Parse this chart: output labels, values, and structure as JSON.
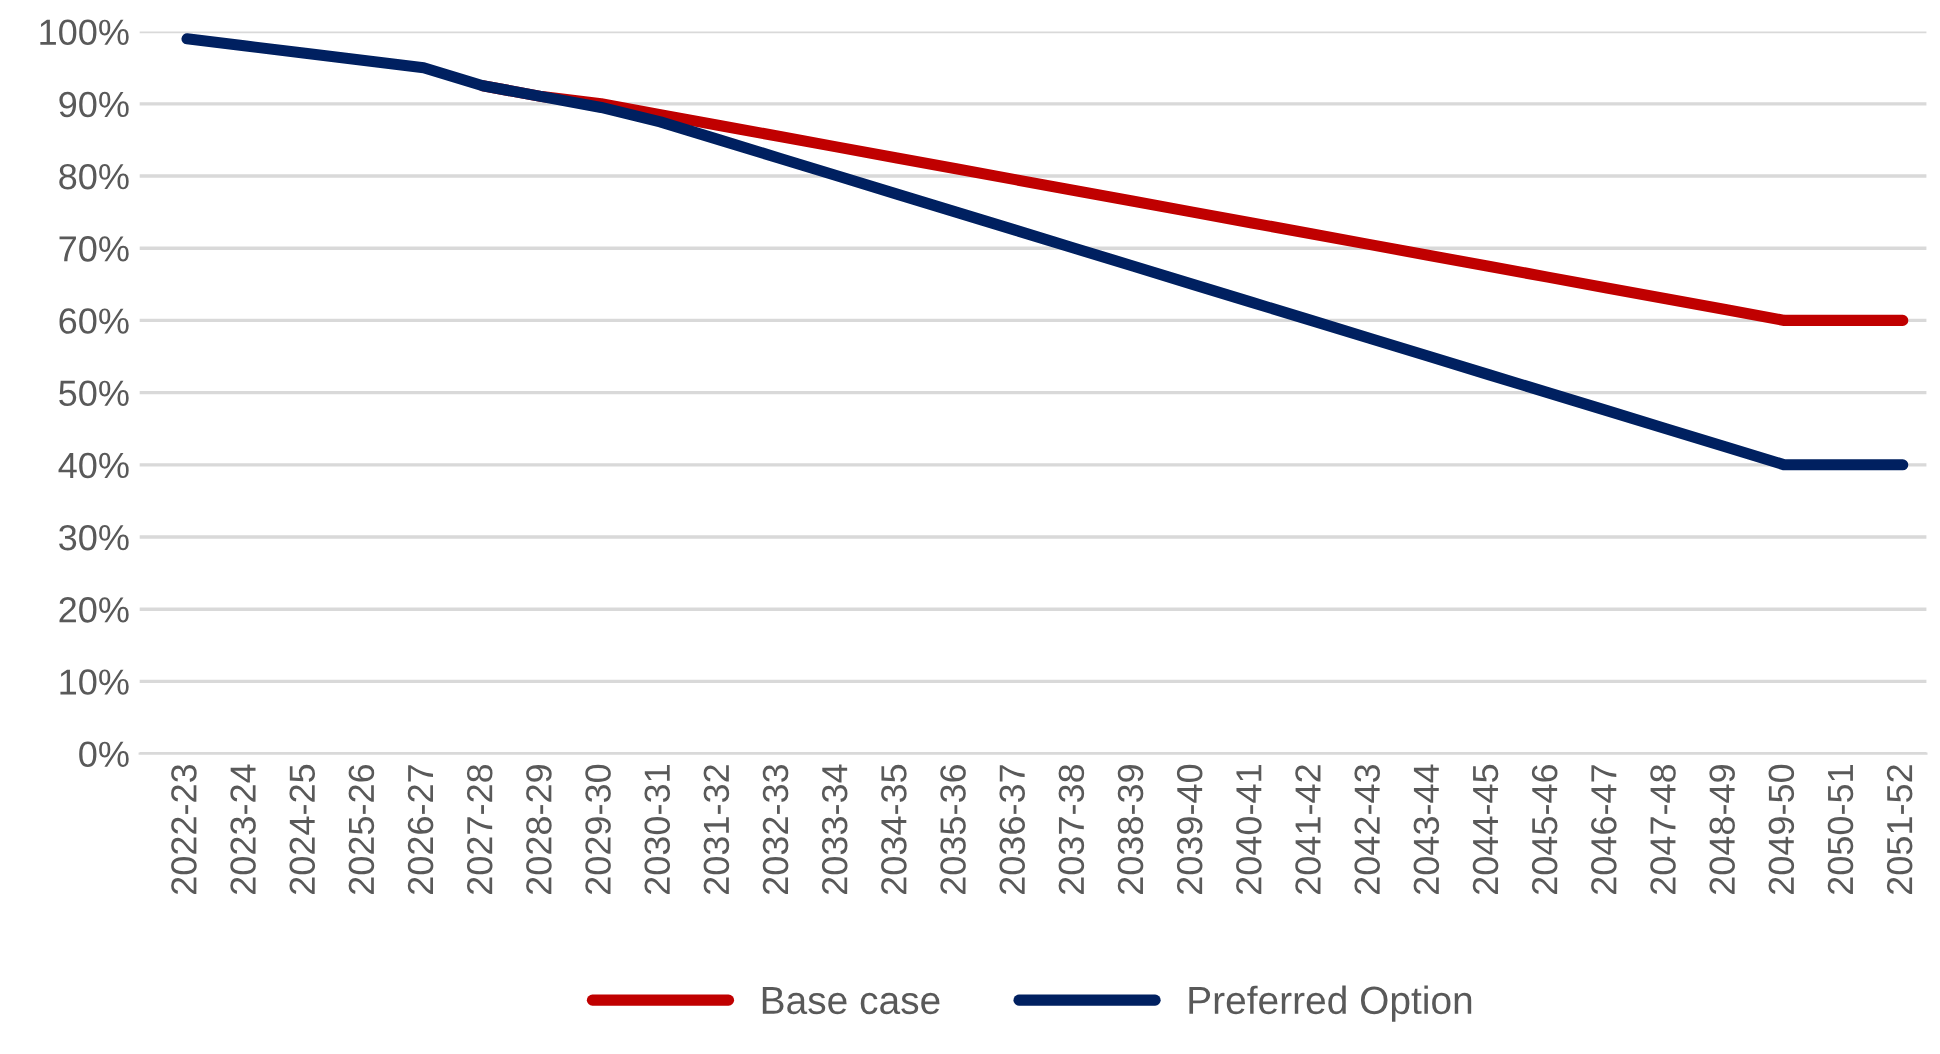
{
  "chart_data": {
    "type": "line",
    "categories": [
      "2022-23",
      "2023-24",
      "2024-25",
      "2025-26",
      "2026-27",
      "2027-28",
      "2028-29",
      "2029-30",
      "2030-31",
      "2031-32",
      "2032-33",
      "2033-34",
      "2034-35",
      "2035-36",
      "2036-37",
      "2037-38",
      "2038-39",
      "2039-40",
      "2040-41",
      "2041-42",
      "2042-43",
      "2043-44",
      "2044-45",
      "2045-46",
      "2046-47",
      "2047-48",
      "2048-49",
      "2049-50",
      "2050-51",
      "2051-52"
    ],
    "series": [
      {
        "name": "Base case",
        "color": "#c00000",
        "values": [
          null,
          null,
          null,
          null,
          null,
          92.5,
          91,
          90,
          88.5,
          87,
          85.5,
          84,
          82.5,
          81,
          79.5,
          78,
          76.5,
          75,
          73.5,
          72,
          70.5,
          69,
          67.5,
          66,
          64.5,
          63,
          61.5,
          60,
          60,
          60
        ]
      },
      {
        "name": "Preferred Option",
        "color": "#002060",
        "values": [
          99,
          98,
          97,
          96,
          95,
          92.5,
          91,
          89.5,
          87.5,
          85,
          82.5,
          80,
          77.5,
          75,
          72.5,
          70,
          67.5,
          65,
          62.5,
          60,
          57.5,
          55,
          52.5,
          50,
          47.5,
          45,
          42.5,
          40,
          40,
          40
        ]
      }
    ],
    "ylim": [
      0,
      100
    ],
    "yticks": [
      {
        "value": 0,
        "label": "0%"
      },
      {
        "value": 10,
        "label": "10%"
      },
      {
        "value": 20,
        "label": "20%"
      },
      {
        "value": 30,
        "label": "30%"
      },
      {
        "value": 40,
        "label": "40%"
      },
      {
        "value": 50,
        "label": "50%"
      },
      {
        "value": 60,
        "label": "60%"
      },
      {
        "value": 70,
        "label": "70%"
      },
      {
        "value": 80,
        "label": "80%"
      },
      {
        "value": 90,
        "label": "90%"
      },
      {
        "value": 100,
        "label": "100%"
      }
    ],
    "grid": "y",
    "legend": "bottom",
    "marker": "none",
    "line_style": "solid"
  }
}
